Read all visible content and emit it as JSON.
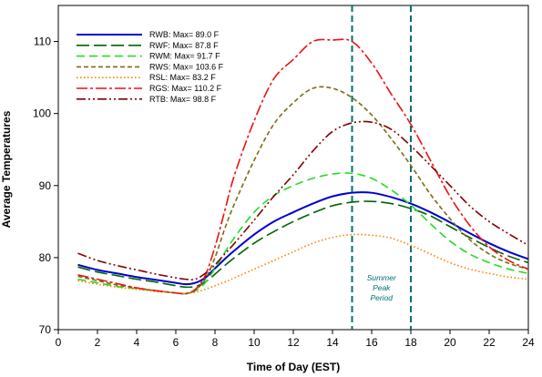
{
  "chart_data": {
    "type": "line",
    "xlabel": "Time of Day (EST)",
    "ylabel": "Average Temperatures",
    "xlim": [
      0,
      24
    ],
    "ylim": [
      70,
      115
    ],
    "x_ticks": [
      0,
      2,
      4,
      6,
      8,
      10,
      12,
      14,
      16,
      18,
      20,
      22,
      24
    ],
    "y_ticks": [
      70,
      80,
      90,
      100,
      110
    ],
    "x_tick_labels": [
      "0",
      "2",
      "4",
      "6",
      "8",
      "10",
      "12",
      "14",
      "16",
      "18",
      "20",
      "22",
      "24"
    ],
    "y_tick_labels": [
      "70",
      "80",
      "90",
      "100",
      "110"
    ],
    "grid": false,
    "legend_position": "top-left",
    "x": [
      1,
      2,
      3,
      4,
      5,
      6,
      6.5,
      7,
      7.5,
      8,
      8.5,
      9,
      10,
      11,
      12,
      13,
      14,
      15,
      16,
      17,
      18,
      19,
      20,
      21,
      22,
      23,
      24
    ],
    "series": [
      {
        "name": "RWB: Max= 89.0 F",
        "color": "#0000cc",
        "dash": "solid",
        "values": [
          79.0,
          78.3,
          77.8,
          77.3,
          76.9,
          76.5,
          76.3,
          76.5,
          77.2,
          78.5,
          79.8,
          81.0,
          83.2,
          85.0,
          86.3,
          87.5,
          88.5,
          89.0,
          89.0,
          88.4,
          87.5,
          86.3,
          84.9,
          83.4,
          82.0,
          80.8,
          79.8
        ]
      },
      {
        "name": "RWF: Max= 87.8 F",
        "color": "#006400",
        "dash": "longdash",
        "values": [
          78.7,
          78.0,
          77.5,
          77.0,
          76.6,
          76.1,
          75.9,
          76.0,
          76.6,
          77.7,
          78.9,
          80.0,
          82.0,
          83.6,
          85.0,
          86.2,
          87.2,
          87.7,
          87.8,
          87.5,
          86.8,
          85.8,
          84.3,
          82.8,
          81.4,
          80.2,
          79.3
        ]
      },
      {
        "name": "RWM: Max= 91.7 F",
        "color": "#22dd22",
        "dash": "dash",
        "values": [
          77.0,
          76.5,
          76.0,
          75.7,
          75.4,
          75.1,
          75.0,
          75.4,
          76.5,
          78.5,
          80.7,
          82.8,
          86.3,
          88.6,
          90.0,
          91.0,
          91.6,
          91.7,
          91.0,
          89.4,
          87.3,
          84.7,
          82.3,
          80.5,
          79.3,
          78.4,
          77.8
        ]
      },
      {
        "name": "RWS: Max= 103.6 F",
        "color": "#7b6d12",
        "dash": "shortdash",
        "values": [
          77.4,
          76.8,
          76.2,
          75.8,
          75.4,
          75.1,
          75.0,
          75.5,
          77.0,
          80.0,
          84.0,
          87.5,
          93.5,
          98.5,
          101.5,
          103.5,
          103.5,
          102.2,
          99.8,
          96.5,
          92.8,
          88.8,
          85.4,
          82.5,
          80.5,
          79.2,
          78.4
        ]
      },
      {
        "name": "RSL: Max= 83.2 F",
        "color": "#ff7f00",
        "dash": "dotted",
        "values": [
          76.8,
          76.3,
          75.9,
          75.6,
          75.3,
          75.1,
          75.0,
          75.2,
          75.6,
          76.1,
          76.6,
          77.2,
          78.4,
          79.6,
          80.8,
          82.0,
          82.8,
          83.2,
          83.1,
          82.7,
          81.7,
          80.5,
          79.3,
          78.4,
          77.8,
          77.3,
          77.0
        ]
      },
      {
        "name": "RGS: Max= 110.2 F",
        "color": "#ee1111",
        "dash": "dashdot",
        "values": [
          77.6,
          77.0,
          76.4,
          75.8,
          75.4,
          75.1,
          75.0,
          75.6,
          77.5,
          81.5,
          86.5,
          91.5,
          99.0,
          104.8,
          107.5,
          110.0,
          110.2,
          110.0,
          107.0,
          102.7,
          98.5,
          93.5,
          88.5,
          84.5,
          81.5,
          79.6,
          78.4
        ]
      },
      {
        "name": "RTB: Max= 98.8 F",
        "color": "#800000",
        "dash": "dashdotdot",
        "values": [
          80.6,
          79.6,
          78.9,
          78.3,
          77.7,
          77.2,
          77.0,
          77.0,
          77.8,
          79.0,
          80.5,
          82.0,
          85.2,
          88.5,
          91.5,
          94.8,
          97.5,
          98.7,
          98.8,
          97.8,
          95.5,
          92.8,
          90.0,
          87.2,
          85.0,
          83.3,
          81.7
        ]
      }
    ],
    "vlines": [
      {
        "x": 15,
        "color": "#007070"
      },
      {
        "x": 18,
        "color": "#007070"
      }
    ],
    "annotation": {
      "lines": [
        "Summer",
        "Peak",
        "Period"
      ],
      "x": 16.5,
      "y": 76.8,
      "color": "#007070"
    }
  }
}
